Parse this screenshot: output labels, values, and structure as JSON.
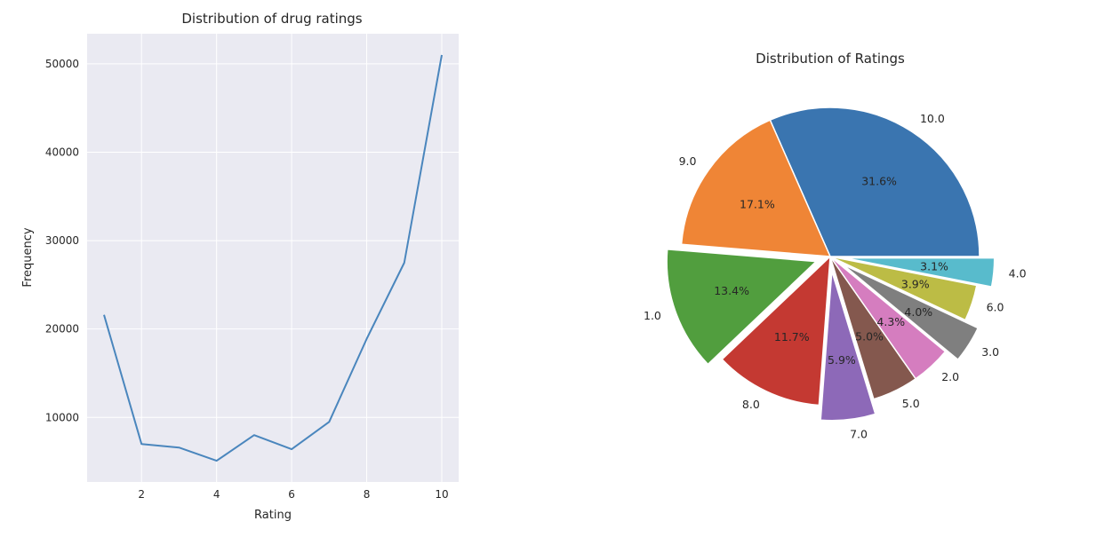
{
  "chart_data": [
    {
      "type": "line",
      "title": "Distribution of drug ratings",
      "xlabel": "Rating",
      "ylabel": "Frequency",
      "x": [
        1,
        2,
        3,
        4,
        5,
        6,
        7,
        8,
        9,
        10
      ],
      "y": [
        21600,
        7000,
        6600,
        5100,
        8000,
        6400,
        9500,
        18900,
        27500,
        51000
      ],
      "xlim": [
        0.55,
        10.45
      ],
      "ylim": [
        2700,
        53400
      ],
      "xticks": [
        "2",
        "4",
        "6",
        "8",
        "10"
      ],
      "yticks": [
        "10000",
        "20000",
        "30000",
        "40000",
        "50000"
      ],
      "grid": true,
      "line_color": "#4a86bd",
      "background": "#eaeaf2"
    },
    {
      "type": "pie",
      "title": "Distribution of Ratings",
      "slices": [
        {
          "label": "10.0",
          "pct": "31.6%",
          "value": 31.6,
          "color": "#3a75b0",
          "explode": false
        },
        {
          "label": "9.0",
          "pct": "17.1%",
          "value": 17.1,
          "color": "#ef8536",
          "explode": false
        },
        {
          "label": "1.0",
          "pct": "13.4%",
          "value": 13.4,
          "color": "#519e3e",
          "explode": true
        },
        {
          "label": "8.0",
          "pct": "11.7%",
          "value": 11.7,
          "color": "#c43932",
          "explode": false
        },
        {
          "label": "7.0",
          "pct": "5.9%",
          "value": 5.9,
          "color": "#8d69b8",
          "explode": true
        },
        {
          "label": "5.0",
          "pct": "5.0%",
          "value": 5.0,
          "color": "#84584e",
          "explode": false
        },
        {
          "label": "2.0",
          "pct": "4.3%",
          "value": 4.3,
          "color": "#d57dbf",
          "explode": false
        },
        {
          "label": "3.0",
          "pct": "4.0%",
          "value": 4.0,
          "color": "#7f7f7f",
          "explode": true
        },
        {
          "label": "6.0",
          "pct": "3.9%",
          "value": 3.9,
          "color": "#bcbc45",
          "explode": false
        },
        {
          "label": "4.0",
          "pct": "3.1%",
          "value": 3.1,
          "color": "#58bbcc",
          "explode": true
        }
      ]
    }
  ]
}
